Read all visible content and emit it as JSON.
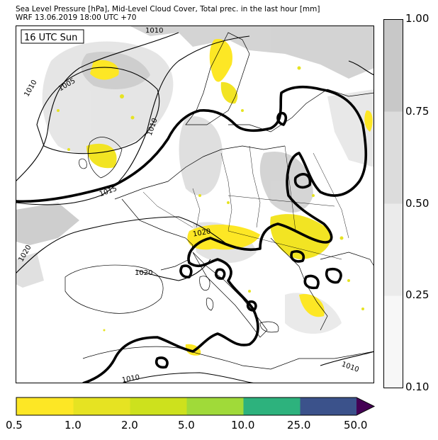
{
  "header": {
    "line1": "Sea Level Pressure [hPa], Mid-Level Cloud Cover, Total prec. in the last hour [mm]",
    "line2": "WRF 13.06.2019 18:00 UTC +70"
  },
  "map": {
    "time_label": "16 UTC Sun",
    "isobar_labels": [
      "1010",
      "1005",
      "1010",
      "1010",
      "1015",
      "1020",
      "1020",
      "1020",
      "1010",
      "1010"
    ]
  },
  "cloud_colorbar": {
    "ticks": [
      "1.00",
      "0.75",
      "0.50",
      "0.25",
      "0.10"
    ],
    "colors": [
      "#c8c8c8",
      "#dcdcdc",
      "#ebebeb",
      "#f7f7f7"
    ]
  },
  "precip_colorbar": {
    "ticks": [
      "0.5",
      "1.0",
      "2.0",
      "5.0",
      "10.0",
      "25.0",
      "50.0"
    ],
    "colors": [
      "#fde725",
      "#e6e322",
      "#cde11d",
      "#a0da39",
      "#2db27d",
      "#3b528b",
      "#440154"
    ]
  }
}
